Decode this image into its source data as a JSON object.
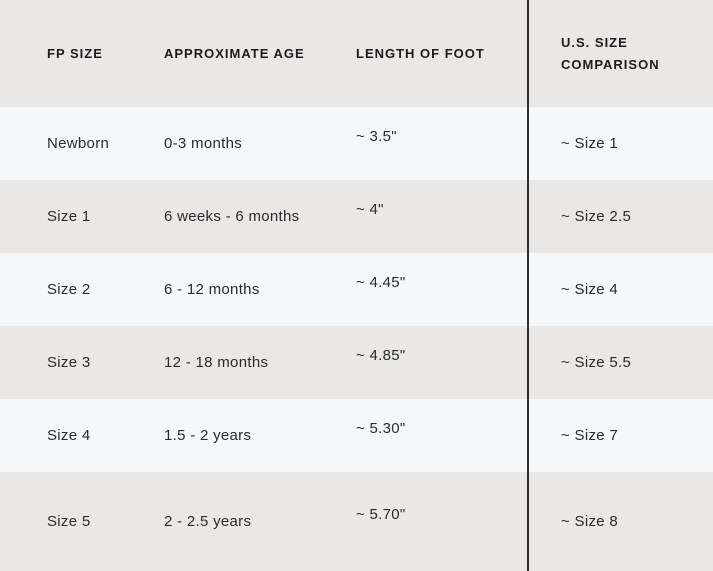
{
  "header": {
    "fp_size": "FP SIZE",
    "age": "APPROXIMATE AGE",
    "foot": "LENGTH OF FOOT",
    "us_line1": "U.S. SIZE",
    "us_line2": "COMPARISON"
  },
  "chart_data": {
    "type": "table",
    "columns": [
      "FP SIZE",
      "APPROXIMATE AGE",
      "LENGTH OF FOOT",
      "U.S. SIZE COMPARISON"
    ],
    "rows": [
      [
        "Newborn",
        "0-3 months",
        "~ 3.5\"",
        "~ Size 1"
      ],
      [
        "Size 1",
        "6 weeks - 6 months",
        "~ 4\"",
        "~ Size 2.5"
      ],
      [
        "Size 2",
        "6 - 12 months",
        "~ 4.45\"",
        "~ Size 4"
      ],
      [
        "Size 3",
        "12 - 18 months",
        "~ 4.85\"",
        "~ Size 5.5"
      ],
      [
        "Size 4",
        "1.5 - 2 years",
        "~ 5.30\"",
        "~ Size 7"
      ],
      [
        "Size 5",
        "2 - 2.5 years",
        "~ 5.70\"",
        "~ Size 8"
      ]
    ]
  },
  "colors": {
    "row_light": "#f6f7f9",
    "row_dark": "#e9e8e7",
    "divider_line": "#2e2e2e",
    "header_text": "#1c1c1c",
    "body_text": "#2b2b2b"
  }
}
